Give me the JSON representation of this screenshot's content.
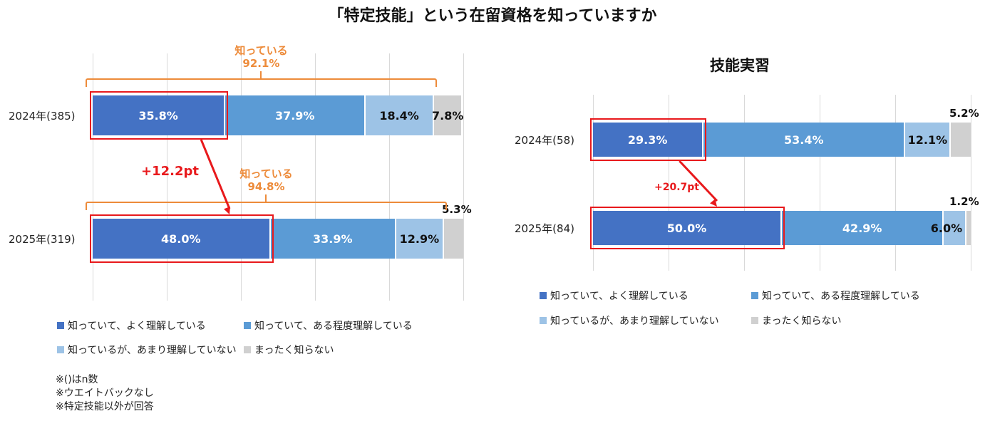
{
  "title": "「特定技能」という在留資格を知っていますか",
  "colors": {
    "well": "#4472c4",
    "somewhat": "#5b9bd5",
    "little": "#9dc3e6",
    "none": "#d0d0d0",
    "highlight": "#e8191c",
    "bracket": "#ed8b3a"
  },
  "legend": {
    "well": "知っていて、よく理解している",
    "somewhat": "知っていて、ある程度理解している",
    "little": "知っているが、あまり理解していない",
    "none": "まったく知らない"
  },
  "notes": [
    "※()はn数",
    "※ウエイトバックなし",
    "※特定技能以外が回答"
  ],
  "chart_data": [
    {
      "type": "bar",
      "orientation": "horizontal",
      "stacked": true,
      "title": "",
      "categories": [
        "2024年(385)",
        "2025年(319)"
      ],
      "series": [
        {
          "name": "知っていて、よく理解している",
          "values": [
            35.8,
            48.0
          ]
        },
        {
          "name": "知っていて、ある程度理解している",
          "values": [
            37.9,
            33.9
          ]
        },
        {
          "name": "知っているが、あまり理解していない",
          "values": [
            18.4,
            12.9
          ]
        },
        {
          "name": "まったく知らない",
          "values": [
            7.8,
            5.3
          ]
        }
      ],
      "labels": [
        [
          "35.8%",
          "37.9%",
          "18.4%",
          "7.8%"
        ],
        [
          "48.0%",
          "33.9%",
          "12.9%",
          "5.3%"
        ]
      ],
      "aware": [
        {
          "label": "知っている",
          "value": "92.1%"
        },
        {
          "label": "知っている",
          "value": "94.8%"
        }
      ],
      "delta": "+12.2pt",
      "xlim": [
        0,
        100
      ]
    },
    {
      "type": "bar",
      "orientation": "horizontal",
      "stacked": true,
      "title": "技能実習",
      "categories": [
        "2024年(58)",
        "2025年(84)"
      ],
      "series": [
        {
          "name": "知っていて、よく理解している",
          "values": [
            29.3,
            50.0
          ]
        },
        {
          "name": "知っていて、ある程度理解している",
          "values": [
            53.4,
            42.9
          ]
        },
        {
          "name": "知っているが、あまり理解していない",
          "values": [
            12.1,
            6.0
          ]
        },
        {
          "name": "まったく知らない",
          "values": [
            5.2,
            1.2
          ]
        }
      ],
      "labels": [
        [
          "29.3%",
          "53.4%",
          "12.1%",
          "5.2%"
        ],
        [
          "50.0%",
          "42.9%",
          "6.0%",
          "1.2%"
        ]
      ],
      "delta": "+20.7pt",
      "xlim": [
        0,
        100
      ]
    }
  ]
}
